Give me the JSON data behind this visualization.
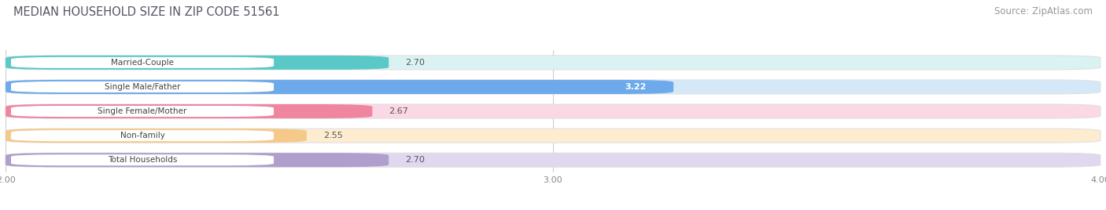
{
  "title": "MEDIAN HOUSEHOLD SIZE IN ZIP CODE 51561",
  "source": "Source: ZipAtlas.com",
  "categories": [
    "Married-Couple",
    "Single Male/Father",
    "Single Female/Mother",
    "Non-family",
    "Total Households"
  ],
  "values": [
    2.7,
    3.22,
    2.67,
    2.55,
    2.7
  ],
  "bar_colors": [
    "#5bc8c8",
    "#6eaaeb",
    "#f085a0",
    "#f5c98a",
    "#b09fcc"
  ],
  "bar_bg_colors": [
    "#daf2f2",
    "#d5e8f8",
    "#fad8e4",
    "#fdecd0",
    "#dfd8ee"
  ],
  "label_colors": [
    "#333333",
    "#ffffff",
    "#333333",
    "#333333",
    "#333333"
  ],
  "xlim": [
    2.0,
    4.0
  ],
  "xticks": [
    2.0,
    3.0,
    4.0
  ],
  "xtick_labels": [
    "2.00",
    "3.00",
    "4.00"
  ],
  "title_fontsize": 10.5,
  "source_fontsize": 8.5,
  "bar_height": 0.58,
  "background_color": "#ffffff"
}
